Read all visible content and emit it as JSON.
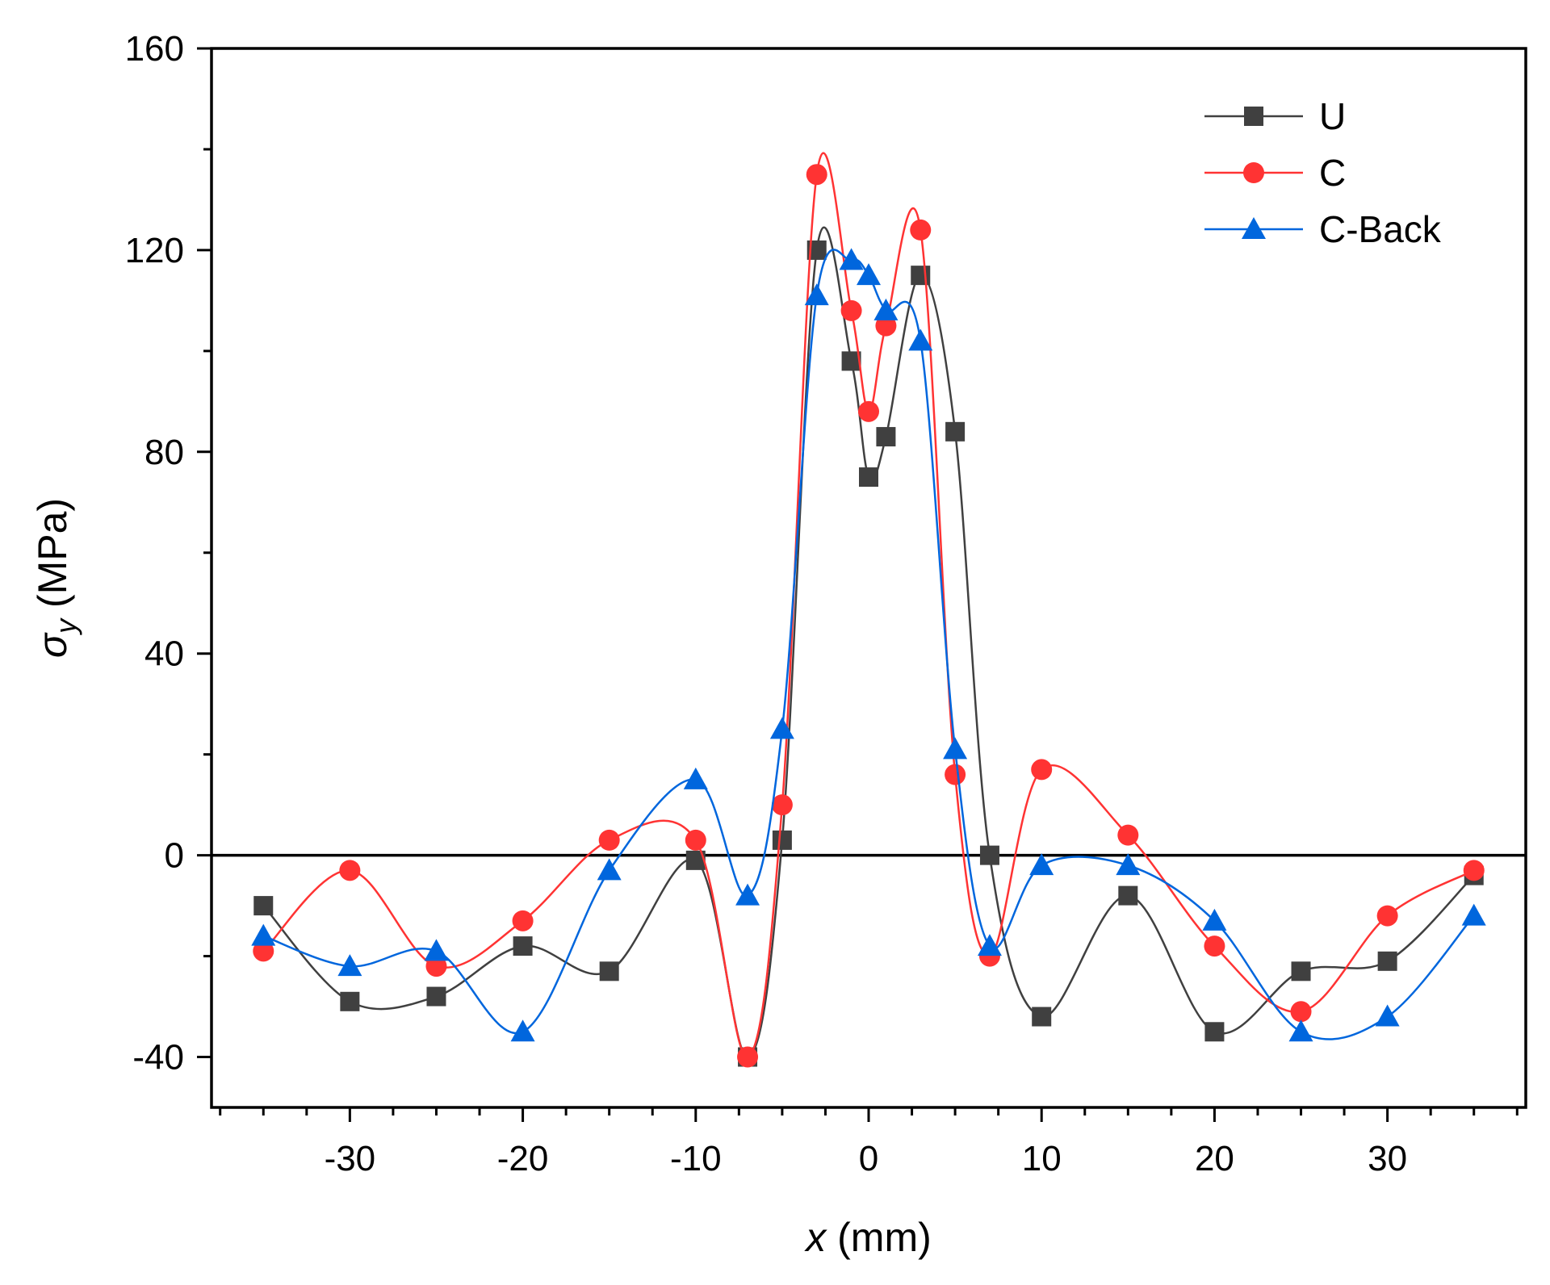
{
  "chart_data": {
    "type": "line",
    "title": "",
    "xlabel": {
      "var": "x",
      "unit": " (mm)"
    },
    "ylabel": {
      "var": "σ",
      "sub": "y",
      "unit": " (MPa)"
    },
    "xlim": [
      -38,
      38
    ],
    "ylim": [
      -50,
      160
    ],
    "x_ticks": [
      -30,
      -20,
      -10,
      0,
      10,
      20,
      30
    ],
    "x_tick_labels": [
      "-30",
      "-20",
      "-10",
      "0",
      "10",
      "20",
      "30"
    ],
    "y_ticks": [
      -40,
      0,
      40,
      80,
      120,
      160
    ],
    "y_tick_labels": [
      "-40",
      "0",
      "40",
      "80",
      "120",
      "160"
    ],
    "zero_line": true,
    "grid": false,
    "legend_position": "top-right",
    "series": [
      {
        "name": "U",
        "color": "#404040",
        "marker": "square",
        "x": [
          -35,
          -30,
          -25,
          -20,
          -15,
          -10,
          -7,
          -5,
          -3,
          -1,
          0,
          1,
          3,
          5,
          7,
          10,
          15,
          20,
          25,
          30,
          35
        ],
        "values": [
          -10,
          -29,
          -28,
          -18,
          -23,
          -1,
          -40,
          3,
          120,
          98,
          75,
          83,
          115,
          84,
          0,
          -32,
          -8,
          -35,
          -23,
          -21,
          -4
        ]
      },
      {
        "name": "C",
        "color": "#ff3333",
        "marker": "circle",
        "x": [
          -35,
          -30,
          -25,
          -20,
          -15,
          -10,
          -7,
          -5,
          -3,
          -1,
          0,
          1,
          3,
          5,
          7,
          10,
          15,
          20,
          25,
          30,
          35
        ],
        "values": [
          -19,
          -3,
          -22,
          -13,
          3,
          3,
          -40,
          10,
          135,
          108,
          88,
          105,
          124,
          16,
          -20,
          17,
          4,
          -18,
          -31,
          -12,
          -3
        ]
      },
      {
        "name": "C-Back",
        "color": "#0066dd",
        "marker": "triangle",
        "x": [
          -35,
          -30,
          -25,
          -20,
          -15,
          -10,
          -7,
          -5,
          -3,
          -1,
          0,
          1,
          3,
          5,
          7,
          10,
          15,
          20,
          25,
          30,
          35
        ],
        "values": [
          -16,
          -22,
          -19,
          -35,
          -3,
          15,
          -8,
          25,
          111,
          118,
          115,
          108,
          102,
          21,
          -18,
          -2,
          -2,
          -13,
          -35,
          -32,
          -12
        ]
      }
    ]
  }
}
